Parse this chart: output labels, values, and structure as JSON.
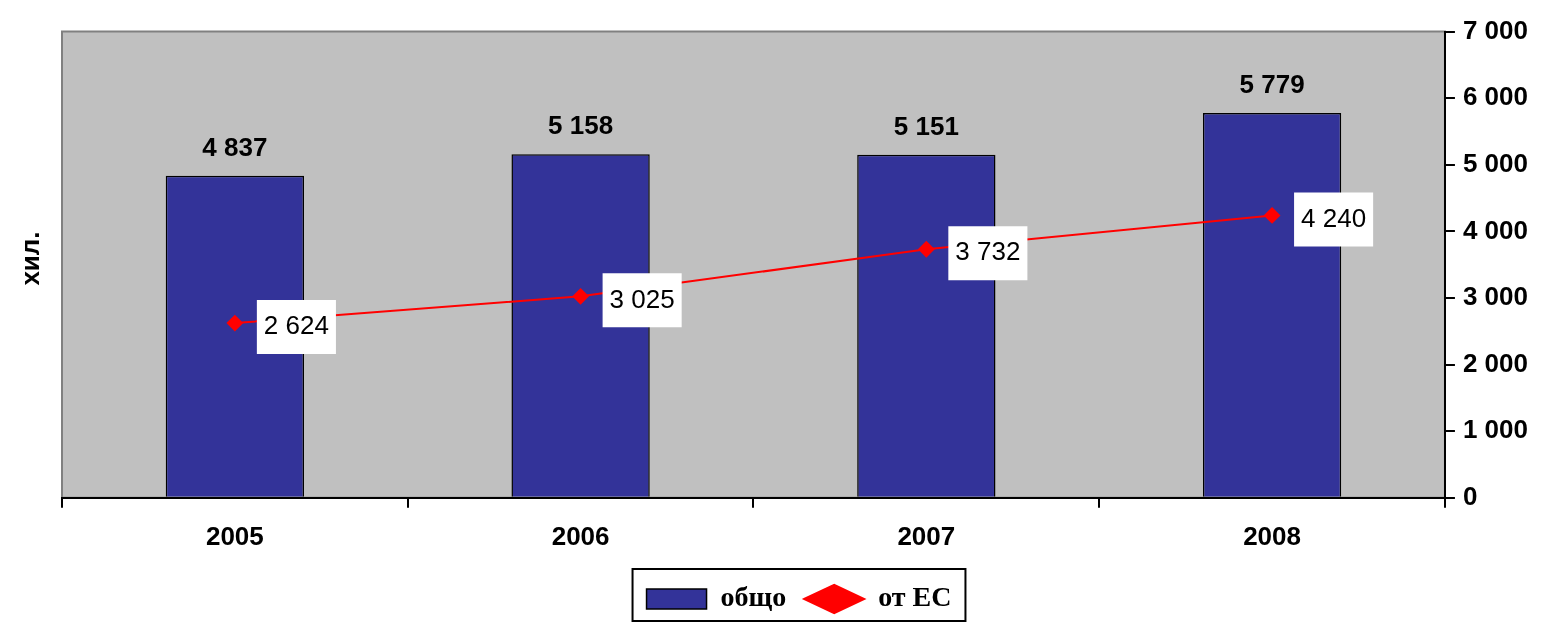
{
  "chart_data": {
    "type": "bar",
    "ylabel": "хил.",
    "categories": [
      "2005",
      "2006",
      "2007",
      "2008"
    ],
    "series": [
      {
        "name": "общо",
        "color": "#333399",
        "values": [
          4837,
          5158,
          5151,
          5779
        ],
        "value_labels": [
          "4 837",
          "5 158",
          "5 151",
          "5 779"
        ]
      },
      {
        "name": "от ЕС",
        "type": "line",
        "color": "#ff0000",
        "marker": "diamond",
        "values": [
          2624,
          3025,
          3732,
          4240
        ],
        "value_labels": [
          "2 624",
          "3 025",
          "3 732",
          "4 240"
        ]
      }
    ],
    "ylim": [
      0,
      7000
    ],
    "yticks": [
      {
        "value": 0,
        "label": "0"
      },
      {
        "value": 1000,
        "label": "1 000"
      },
      {
        "value": 2000,
        "label": "2 000"
      },
      {
        "value": 3000,
        "label": "3 000"
      },
      {
        "value": 4000,
        "label": "4 000"
      },
      {
        "value": 5000,
        "label": "5 000"
      },
      {
        "value": 6000,
        "label": "6 000"
      },
      {
        "value": 7000,
        "label": "7 000"
      }
    ],
    "grid": false,
    "legend": "bottom"
  }
}
